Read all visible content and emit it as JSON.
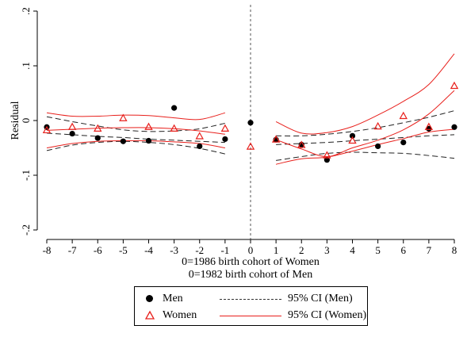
{
  "chart_data": {
    "type": "scatter",
    "ylabel": "Residual",
    "xlabel_lines": [
      "0=1986 birth cohort of Women",
      "0=1982 birth cohort of Men"
    ],
    "xlim": [
      -8,
      8
    ],
    "ylim": [
      -0.2,
      0.2
    ],
    "xticks": [
      -8,
      -7,
      -6,
      -5,
      -4,
      -3,
      -2,
      -1,
      0,
      1,
      2,
      3,
      4,
      5,
      6,
      7,
      8
    ],
    "yticks": [
      {
        "v": -0.2,
        "label": "-.2"
      },
      {
        "v": -0.1,
        "label": "-.1"
      },
      {
        "v": 0,
        "label": "0"
      },
      {
        "v": 0.1,
        "label": ".1"
      },
      {
        "v": 0.2,
        "label": ".2"
      }
    ],
    "cutoff_x": 0,
    "grid": false,
    "legend_position": "bottom",
    "colors": {
      "men": "#000000",
      "women": "#e8201c"
    },
    "points": {
      "men": {
        "x": [
          -8,
          -7,
          -6,
          -5,
          -4,
          -3,
          -2,
          -1,
          0,
          1,
          2,
          3,
          4,
          5,
          6,
          7,
          8
        ],
        "y": [
          -0.012,
          -0.024,
          -0.032,
          -0.038,
          -0.037,
          0.023,
          -0.047,
          -0.034,
          -0.004,
          -0.035,
          -0.044,
          -0.072,
          -0.028,
          -0.047,
          -0.04,
          -0.015,
          -0.012
        ]
      },
      "women": {
        "x": [
          -8,
          -7,
          -6,
          -5,
          -4,
          -3,
          -2,
          -1,
          0,
          1,
          2,
          3,
          4,
          5,
          6,
          7,
          8
        ],
        "y": [
          -0.018,
          -0.012,
          -0.015,
          0.004,
          -0.012,
          -0.015,
          -0.029,
          -0.015,
          -0.048,
          -0.035,
          -0.045,
          -0.064,
          -0.037,
          -0.011,
          0.008,
          -0.012,
          0.063
        ]
      }
    },
    "ci_bands": [
      {
        "series": "men",
        "side": "left",
        "style": "dashed",
        "x": [
          -8,
          -7,
          -6,
          -5,
          -4,
          -3,
          -2,
          -1
        ],
        "lower": [
          -0.055,
          -0.045,
          -0.04,
          -0.038,
          -0.04,
          -0.044,
          -0.051,
          -0.061
        ],
        "mid": [
          -0.023,
          -0.026,
          -0.029,
          -0.031,
          -0.034,
          -0.036,
          -0.038,
          -0.04
        ],
        "upper": [
          0.007,
          -0.002,
          -0.01,
          -0.017,
          -0.02,
          -0.019,
          -0.015,
          -0.005
        ]
      },
      {
        "series": "women",
        "side": "left",
        "style": "solid",
        "x": [
          -8,
          -7,
          -6,
          -5,
          -4,
          -3,
          -2,
          -1
        ],
        "lower": [
          -0.05,
          -0.042,
          -0.038,
          -0.037,
          -0.037,
          -0.039,
          -0.042,
          -0.05
        ],
        "mid": [
          -0.018,
          -0.016,
          -0.014,
          -0.013,
          -0.013,
          -0.015,
          -0.019,
          -0.025
        ],
        "upper": [
          0.014,
          0.008,
          0.008,
          0.01,
          0.009,
          0.005,
          0.002,
          0.014
        ]
      },
      {
        "series": "men",
        "side": "right",
        "style": "dashed",
        "x": [
          1,
          2,
          3,
          4,
          5,
          6,
          7,
          8
        ],
        "lower": [
          -0.073,
          -0.066,
          -0.06,
          -0.058,
          -0.059,
          -0.06,
          -0.064,
          -0.069
        ],
        "mid": [
          -0.044,
          -0.042,
          -0.04,
          -0.037,
          -0.034,
          -0.031,
          -0.028,
          -0.026
        ],
        "upper": [
          -0.028,
          -0.028,
          -0.025,
          -0.02,
          -0.013,
          -0.004,
          0.006,
          0.018
        ]
      },
      {
        "series": "women",
        "side": "right",
        "style": "solid",
        "x": [
          1,
          2,
          3,
          4,
          5,
          6,
          7,
          8
        ],
        "lower": [
          -0.08,
          -0.07,
          -0.067,
          -0.056,
          -0.044,
          -0.033,
          -0.021,
          -0.016
        ],
        "mid": [
          -0.035,
          -0.052,
          -0.066,
          -0.05,
          -0.036,
          -0.017,
          0.012,
          0.055
        ],
        "upper": [
          -0.002,
          -0.023,
          -0.022,
          -0.011,
          0.01,
          0.035,
          0.066,
          0.122
        ]
      }
    ]
  },
  "legend": {
    "men_label": "Men",
    "women_label": "Women",
    "ci_men_label": "95% CI (Men)",
    "ci_women_label": "95% CI (Women)"
  }
}
